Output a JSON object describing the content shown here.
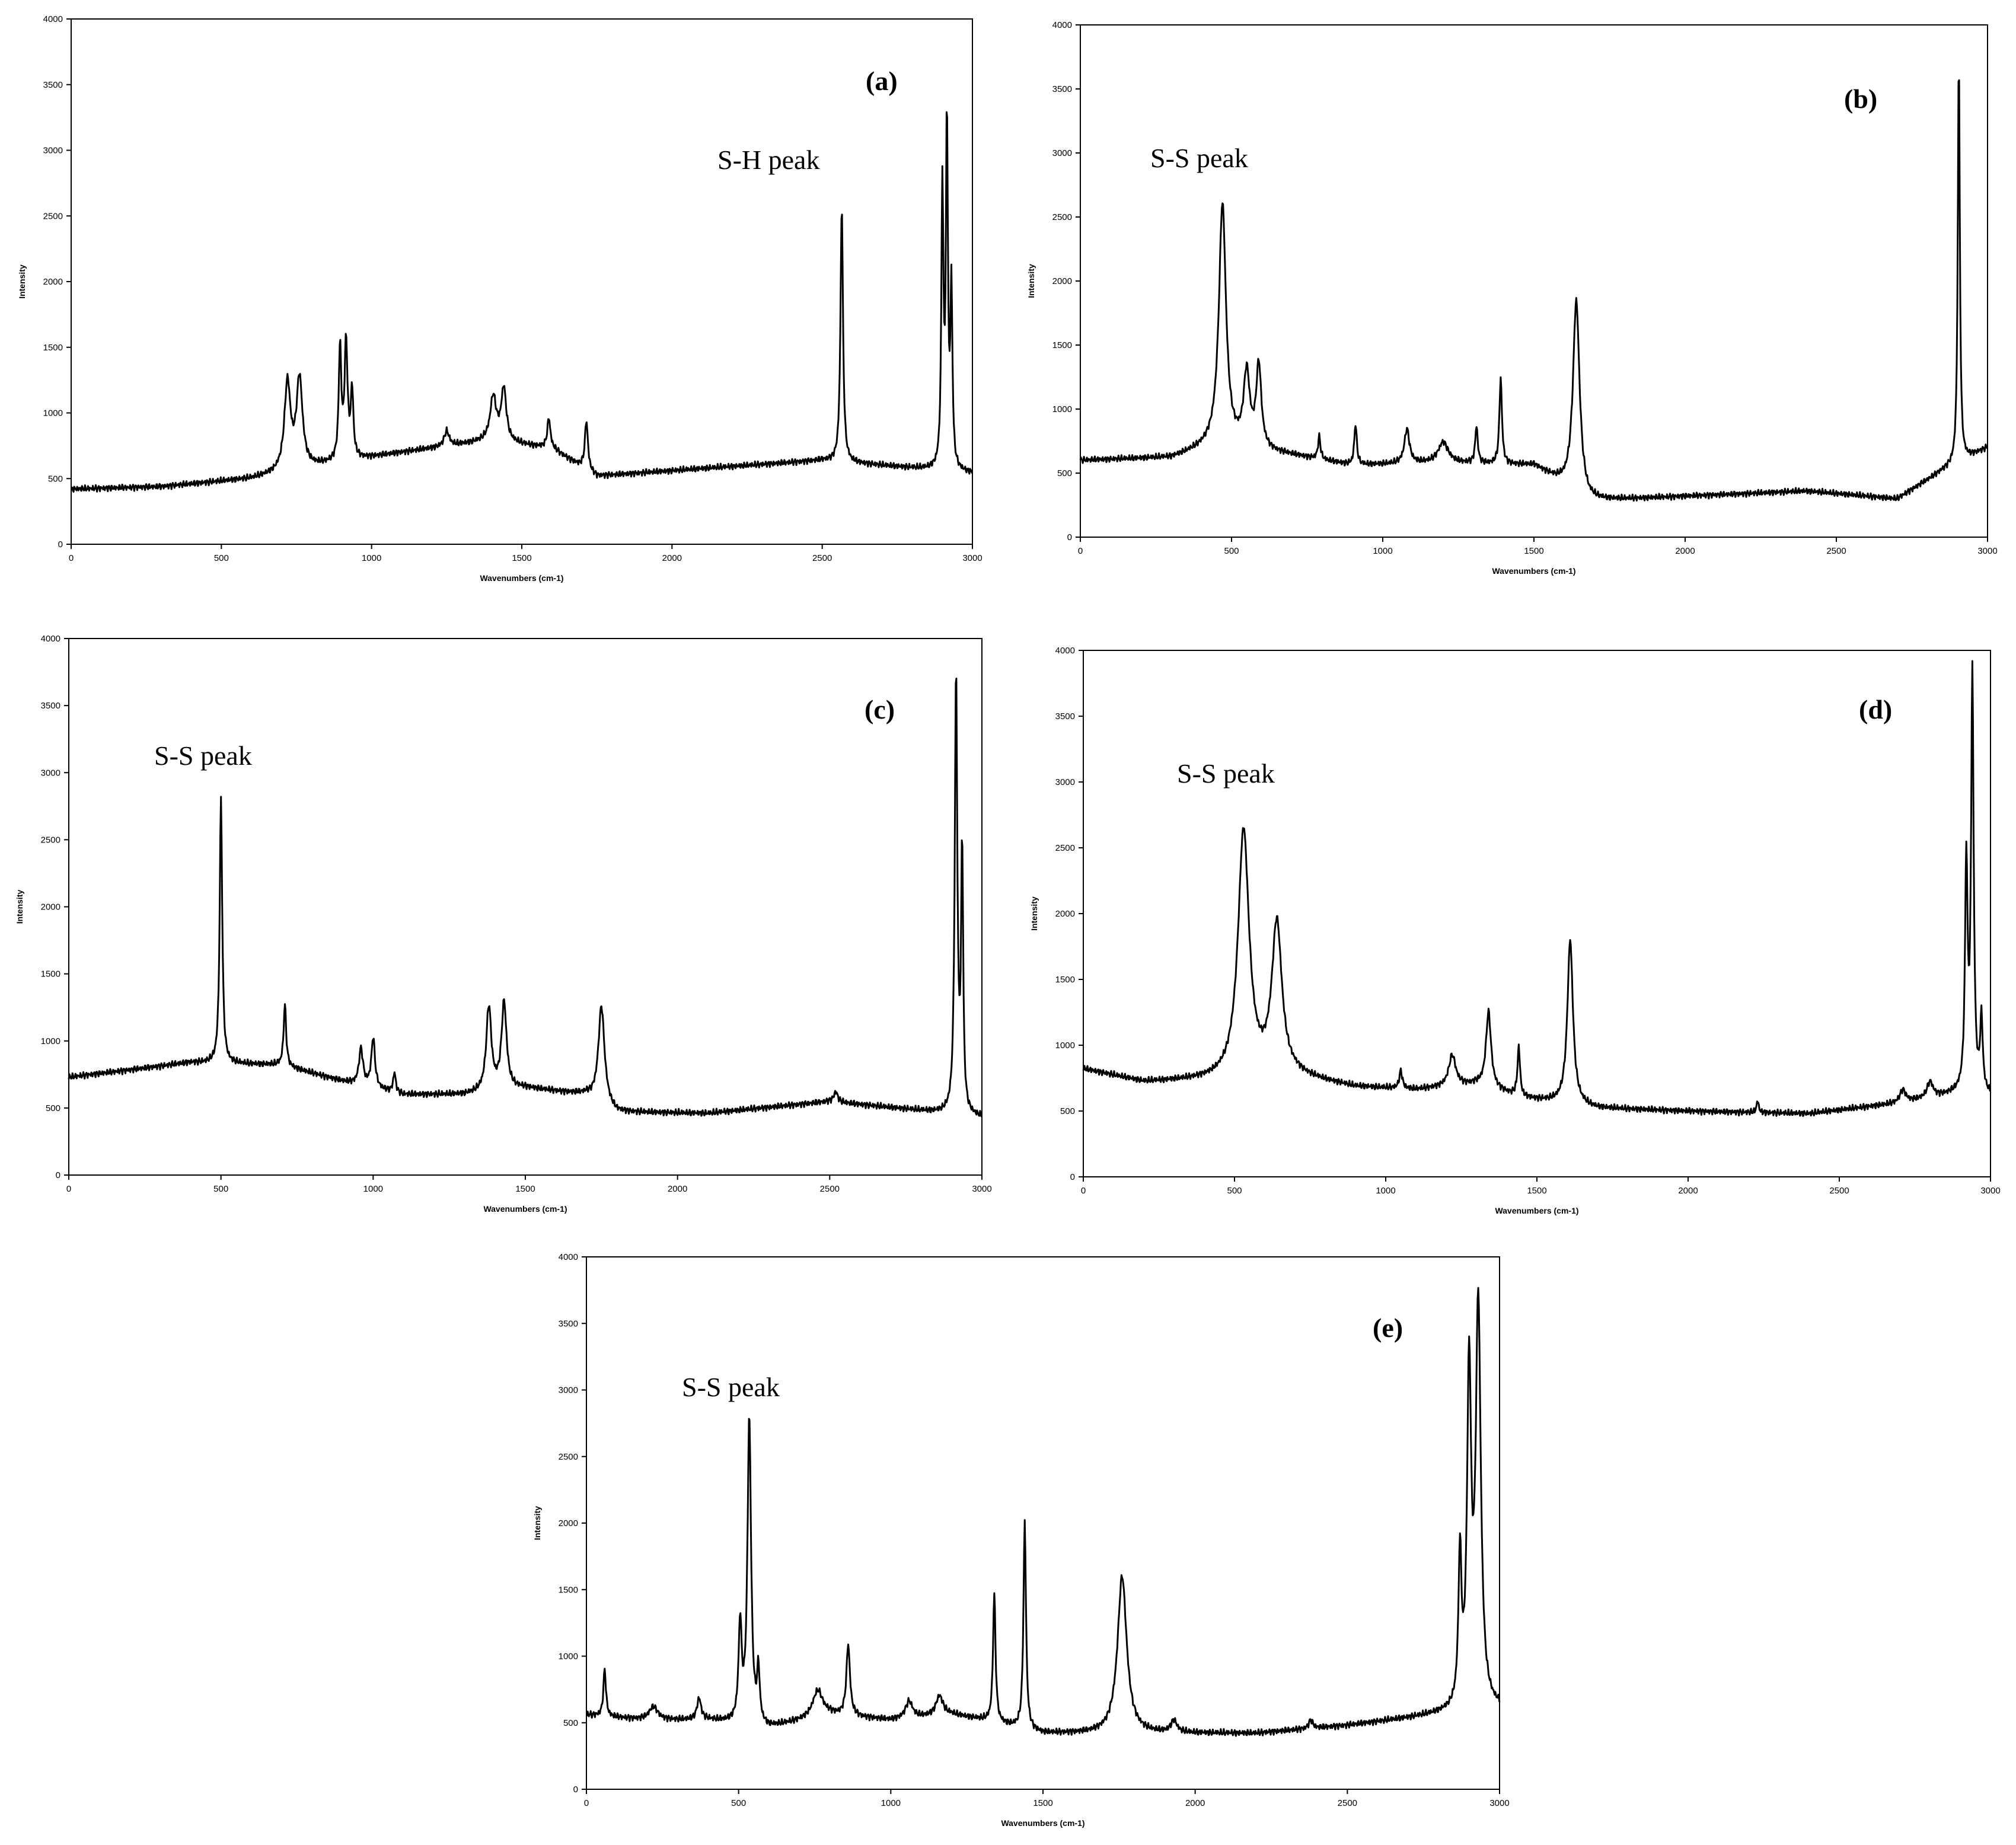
{
  "chart_data": [
    {
      "type": "line",
      "panel_label": "(a)",
      "annotation": "S-H peak",
      "xlabel": "Wavenumbers (cm-1)",
      "ylabel": "Intensity",
      "xlim": [
        0,
        3000
      ],
      "ylim": [
        0,
        4000
      ],
      "xticks": [
        "0",
        "500",
        "1000",
        "1500",
        "2000",
        "2500",
        "3000"
      ],
      "yticks": [
        "0",
        "500",
        "1000",
        "1500",
        "2000",
        "2500",
        "3000",
        "3500",
        "4000"
      ],
      "baseline": [
        [
          0,
          420
        ],
        [
          300,
          440
        ],
        [
          600,
          500
        ],
        [
          900,
          630
        ],
        [
          1100,
          700
        ],
        [
          1400,
          790
        ],
        [
          1600,
          730
        ],
        [
          1750,
          520
        ],
        [
          2000,
          560
        ],
        [
          2500,
          640
        ],
        [
          2700,
          600
        ],
        [
          2850,
          570
        ],
        [
          3000,
          540
        ]
      ],
      "peaks": [
        {
          "x": 720,
          "y": 1220,
          "w": 12
        },
        {
          "x": 760,
          "y": 1250,
          "w": 12
        },
        {
          "x": 895,
          "y": 1480,
          "w": 5
        },
        {
          "x": 915,
          "y": 1520,
          "w": 6
        },
        {
          "x": 935,
          "y": 1150,
          "w": 5
        },
        {
          "x": 1250,
          "y": 860,
          "w": 10
        },
        {
          "x": 1405,
          "y": 1120,
          "w": 12
        },
        {
          "x": 1440,
          "y": 1180,
          "w": 10
        },
        {
          "x": 1590,
          "y": 960,
          "w": 6
        },
        {
          "x": 1715,
          "y": 940,
          "w": 6
        },
        {
          "x": 2565,
          "y": 2580,
          "w": 5
        },
        {
          "x": 2900,
          "y": 2700,
          "w": 4
        },
        {
          "x": 2915,
          "y": 3180,
          "w": 4
        },
        {
          "x": 2930,
          "y": 1900,
          "w": 4
        }
      ]
    },
    {
      "type": "line",
      "panel_label": "(b)",
      "annotation": "S-S peak",
      "xlabel": "Wavenumbers (cm-1)",
      "ylabel": "Intensity",
      "xlim": [
        0,
        3000
      ],
      "ylim": [
        0,
        4000
      ],
      "xticks": [
        "0",
        "500",
        "1000",
        "1500",
        "2000",
        "2500",
        "3000"
      ],
      "yticks": [
        "0",
        "500",
        "1000",
        "1500",
        "2000",
        "2500",
        "3000",
        "3500",
        "4000"
      ],
      "baseline": [
        [
          0,
          600
        ],
        [
          300,
          620
        ],
        [
          450,
          720
        ],
        [
          700,
          640
        ],
        [
          900,
          560
        ],
        [
          1200,
          580
        ],
        [
          1500,
          560
        ],
        [
          1680,
          280
        ],
        [
          2000,
          320
        ],
        [
          2400,
          360
        ],
        [
          2700,
          300
        ],
        [
          2850,
          520
        ],
        [
          3000,
          700
        ]
      ],
      "peaks": [
        {
          "x": 470,
          "y": 2600,
          "w": 14
        },
        {
          "x": 550,
          "y": 1260,
          "w": 12
        },
        {
          "x": 590,
          "y": 1320,
          "w": 10
        },
        {
          "x": 790,
          "y": 780,
          "w": 5
        },
        {
          "x": 910,
          "y": 880,
          "w": 5
        },
        {
          "x": 1080,
          "y": 840,
          "w": 10
        },
        {
          "x": 1200,
          "y": 740,
          "w": 20
        },
        {
          "x": 1310,
          "y": 860,
          "w": 5
        },
        {
          "x": 1390,
          "y": 1240,
          "w": 5
        },
        {
          "x": 1640,
          "y": 1850,
          "w": 13
        },
        {
          "x": 2905,
          "y": 3730,
          "w": 4
        }
      ]
    },
    {
      "type": "line",
      "panel_label": "(c)",
      "annotation": "S-S peak",
      "xlabel": "Wavenumbers (cm-1)",
      "ylabel": "Intensity",
      "xlim": [
        0,
        3000
      ],
      "ylim": [
        0,
        4000
      ],
      "xticks": [
        "0",
        "500",
        "1000",
        "1500",
        "2000",
        "2500",
        "3000"
      ],
      "yticks": [
        "0",
        "500",
        "1000",
        "1500",
        "2000",
        "2500",
        "3000",
        "3500",
        "4000"
      ],
      "baseline": [
        [
          0,
          730
        ],
        [
          400,
          840
        ],
        [
          700,
          820
        ],
        [
          900,
          700
        ],
        [
          1100,
          600
        ],
        [
          1300,
          600
        ],
        [
          1500,
          650
        ],
        [
          1700,
          600
        ],
        [
          1800,
          470
        ],
        [
          2100,
          460
        ],
        [
          2500,
          550
        ],
        [
          2800,
          480
        ],
        [
          3000,
          430
        ]
      ],
      "peaks": [
        {
          "x": 500,
          "y": 2800,
          "w": 5
        },
        {
          "x": 710,
          "y": 1270,
          "w": 5
        },
        {
          "x": 960,
          "y": 940,
          "w": 8
        },
        {
          "x": 1000,
          "y": 1020,
          "w": 7
        },
        {
          "x": 1070,
          "y": 760,
          "w": 5
        },
        {
          "x": 1380,
          "y": 1250,
          "w": 10
        },
        {
          "x": 1430,
          "y": 1280,
          "w": 10
        },
        {
          "x": 1750,
          "y": 1260,
          "w": 12
        },
        {
          "x": 2520,
          "y": 620,
          "w": 8
        },
        {
          "x": 2915,
          "y": 3720,
          "w": 5
        },
        {
          "x": 2935,
          "y": 2400,
          "w": 4
        }
      ]
    },
    {
      "type": "line",
      "panel_label": "(d)",
      "annotation": "S-S peak",
      "xlabel": "Wavenumbers (cm-1)",
      "ylabel": "Intensity",
      "xlim": [
        0,
        3000
      ],
      "ylim": [
        0,
        4000
      ],
      "xticks": [
        "0",
        "500",
        "1000",
        "1500",
        "2000",
        "2500",
        "3000"
      ],
      "yticks": [
        "0",
        "500",
        "1000",
        "1500",
        "2000",
        "2500",
        "3000",
        "3500",
        "4000"
      ],
      "baseline": [
        [
          0,
          820
        ],
        [
          200,
          720
        ],
        [
          500,
          740
        ],
        [
          700,
          760
        ],
        [
          900,
          680
        ],
        [
          1100,
          660
        ],
        [
          1300,
          700
        ],
        [
          1450,
          600
        ],
        [
          1700,
          520
        ],
        [
          2000,
          500
        ],
        [
          2400,
          480
        ],
        [
          2700,
          560
        ],
        [
          2900,
          640
        ],
        [
          3000,
          620
        ]
      ],
      "peaks": [
        {
          "x": 530,
          "y": 2620,
          "w": 22
        },
        {
          "x": 640,
          "y": 1900,
          "w": 20
        },
        {
          "x": 1050,
          "y": 800,
          "w": 6
        },
        {
          "x": 1220,
          "y": 920,
          "w": 14
        },
        {
          "x": 1340,
          "y": 1250,
          "w": 10
        },
        {
          "x": 1440,
          "y": 980,
          "w": 5
        },
        {
          "x": 1610,
          "y": 1800,
          "w": 11
        },
        {
          "x": 2230,
          "y": 580,
          "w": 4
        },
        {
          "x": 2710,
          "y": 660,
          "w": 12
        },
        {
          "x": 2800,
          "y": 720,
          "w": 12
        },
        {
          "x": 2920,
          "y": 2380,
          "w": 5
        },
        {
          "x": 2940,
          "y": 3800,
          "w": 5
        },
        {
          "x": 2970,
          "y": 1180,
          "w": 5
        }
      ]
    },
    {
      "type": "line",
      "panel_label": "(e)",
      "annotation": "S-S peak",
      "xlabel": "Wavenumbers (cm-1)",
      "ylabel": "Intensity",
      "xlim": [
        0,
        3000
      ],
      "ylim": [
        0,
        4000
      ],
      "xticks": [
        "0",
        "500",
        "1000",
        "1500",
        "2000",
        "2500",
        "3000"
      ],
      "yticks": [
        "0",
        "500",
        "1000",
        "1500",
        "2000",
        "2500",
        "3000",
        "3500",
        "4000"
      ],
      "baseline": [
        [
          0,
          560
        ],
        [
          200,
          520
        ],
        [
          400,
          520
        ],
        [
          600,
          460
        ],
        [
          800,
          560
        ],
        [
          1000,
          520
        ],
        [
          1200,
          560
        ],
        [
          1300,
          520
        ],
        [
          1500,
          420
        ],
        [
          1700,
          420
        ],
        [
          1900,
          420
        ],
        [
          2200,
          420
        ],
        [
          2500,
          480
        ],
        [
          2800,
          560
        ],
        [
          3000,
          600
        ]
      ],
      "peaks": [
        {
          "x": 60,
          "y": 900,
          "w": 5
        },
        {
          "x": 220,
          "y": 620,
          "w": 18
        },
        {
          "x": 370,
          "y": 680,
          "w": 8
        },
        {
          "x": 505,
          "y": 1220,
          "w": 6
        },
        {
          "x": 535,
          "y": 2780,
          "w": 7
        },
        {
          "x": 565,
          "y": 860,
          "w": 5
        },
        {
          "x": 760,
          "y": 740,
          "w": 20
        },
        {
          "x": 860,
          "y": 1080,
          "w": 7
        },
        {
          "x": 1060,
          "y": 660,
          "w": 14
        },
        {
          "x": 1160,
          "y": 700,
          "w": 14
        },
        {
          "x": 1340,
          "y": 1460,
          "w": 5
        },
        {
          "x": 1440,
          "y": 2000,
          "w": 5
        },
        {
          "x": 1760,
          "y": 1600,
          "w": 18
        },
        {
          "x": 1930,
          "y": 510,
          "w": 12
        },
        {
          "x": 2380,
          "y": 520,
          "w": 8
        },
        {
          "x": 2870,
          "y": 1680,
          "w": 6
        },
        {
          "x": 2900,
          "y": 3060,
          "w": 8
        },
        {
          "x": 2930,
          "y": 3600,
          "w": 10
        }
      ]
    }
  ]
}
